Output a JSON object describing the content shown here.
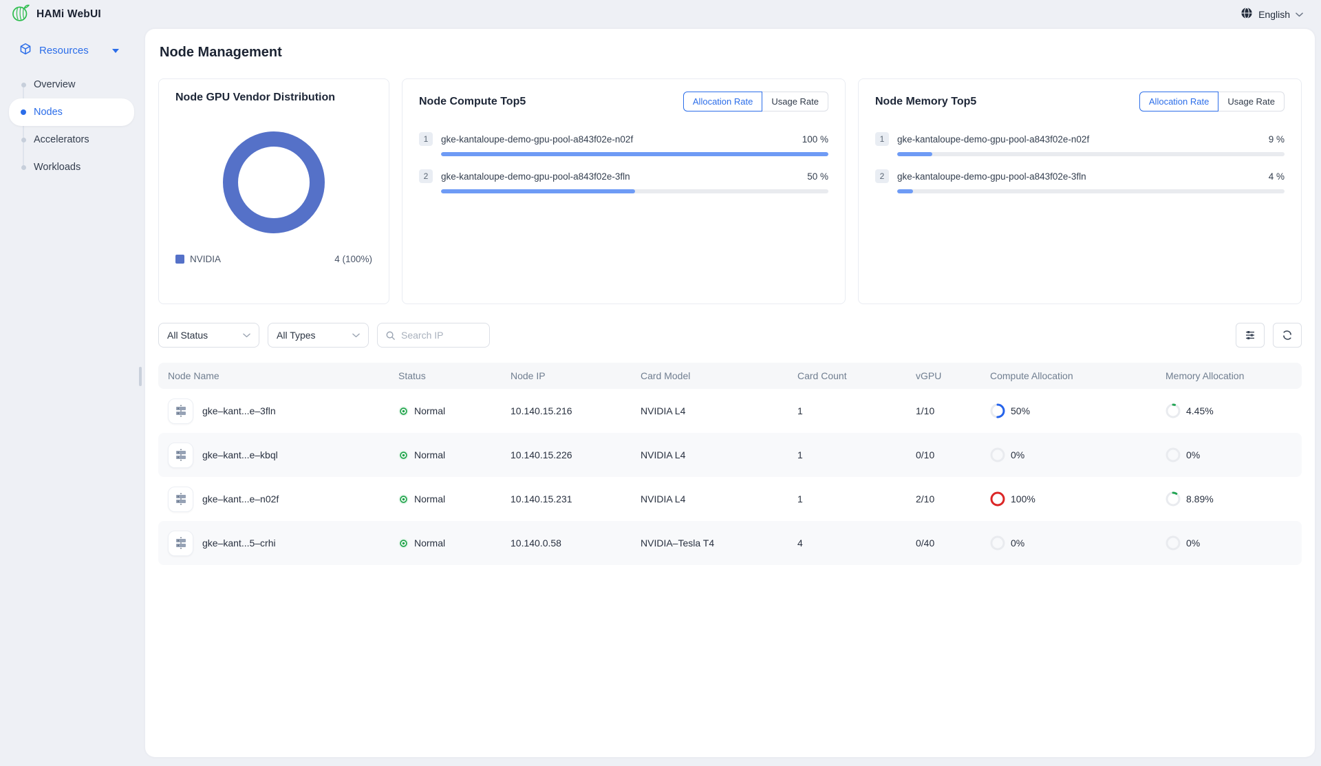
{
  "colors": {
    "accent": "#2b6de9",
    "donut": "#5571c8",
    "bar_fill": "#6e9bf5",
    "ring_track": "#e9ebef",
    "ring_blue": "#2563eb",
    "ring_red": "#dc2626",
    "ring_green": "#21a453",
    "status_green": "#1fa44a"
  },
  "topbar": {
    "app_title": "HAMi WebUI",
    "language": "English"
  },
  "sidebar": {
    "resources_label": "Resources",
    "items": [
      {
        "label": "Overview"
      },
      {
        "label": "Nodes"
      },
      {
        "label": "Accelerators"
      },
      {
        "label": "Workloads"
      }
    ]
  },
  "page": {
    "title": "Node Management"
  },
  "cards": {
    "toggle": {
      "allocation": "Allocation Rate",
      "usage": "Usage Rate"
    },
    "vendor": {
      "title": "Node GPU Vendor Distribution",
      "donut_pct": 100,
      "legend": {
        "label": "NVIDIA",
        "value": "4 (100%)"
      }
    },
    "compute": {
      "title": "Node Compute Top5",
      "rows": [
        {
          "rank": "1",
          "name": "gke-kantaloupe-demo-gpu-pool-a843f02e-n02f",
          "value": "100 %",
          "pct": 100
        },
        {
          "rank": "2",
          "name": "gke-kantaloupe-demo-gpu-pool-a843f02e-3fln",
          "value": "50 %",
          "pct": 50
        }
      ]
    },
    "memory": {
      "title": "Node Memory Top5",
      "rows": [
        {
          "rank": "1",
          "name": "gke-kantaloupe-demo-gpu-pool-a843f02e-n02f",
          "value": "9 %",
          "pct": 9
        },
        {
          "rank": "2",
          "name": "gke-kantaloupe-demo-gpu-pool-a843f02e-3fln",
          "value": "4 %",
          "pct": 4
        }
      ]
    }
  },
  "filters": {
    "status": "All Status",
    "types": "All Types",
    "search_placeholder": "Search IP"
  },
  "table": {
    "columns": [
      "Node Name",
      "Status",
      "Node IP",
      "Card Model",
      "Card Count",
      "vGPU",
      "Compute Allocation",
      "Memory Allocation"
    ],
    "rows": [
      {
        "name": "gke–kant...e–3fln",
        "status": "Normal",
        "ip": "10.140.15.216",
        "model": "NVIDIA L4",
        "count": "1",
        "vgpu": "1/10",
        "compute": {
          "label": "50%",
          "pct": 50,
          "color": "#2563eb"
        },
        "memory": {
          "label": "4.45%",
          "pct": 4.45,
          "color": "#21a453"
        }
      },
      {
        "name": "gke–kant...e–kbql",
        "status": "Normal",
        "ip": "10.140.15.226",
        "model": "NVIDIA L4",
        "count": "1",
        "vgpu": "0/10",
        "compute": {
          "label": "0%",
          "pct": 0,
          "color": "#e9ebef"
        },
        "memory": {
          "label": "0%",
          "pct": 0,
          "color": "#e9ebef"
        }
      },
      {
        "name": "gke–kant...e–n02f",
        "status": "Normal",
        "ip": "10.140.15.231",
        "model": "NVIDIA L4",
        "count": "1",
        "vgpu": "2/10",
        "compute": {
          "label": "100%",
          "pct": 100,
          "color": "#dc2626"
        },
        "memory": {
          "label": "8.89%",
          "pct": 8.89,
          "color": "#21a453"
        }
      },
      {
        "name": "gke–kant...5–crhi",
        "status": "Normal",
        "ip": "10.140.0.58",
        "model": "NVIDIA–Tesla T4",
        "count": "4",
        "vgpu": "0/40",
        "compute": {
          "label": "0%",
          "pct": 0,
          "color": "#e9ebef"
        },
        "memory": {
          "label": "0%",
          "pct": 0,
          "color": "#e9ebef"
        }
      }
    ]
  }
}
